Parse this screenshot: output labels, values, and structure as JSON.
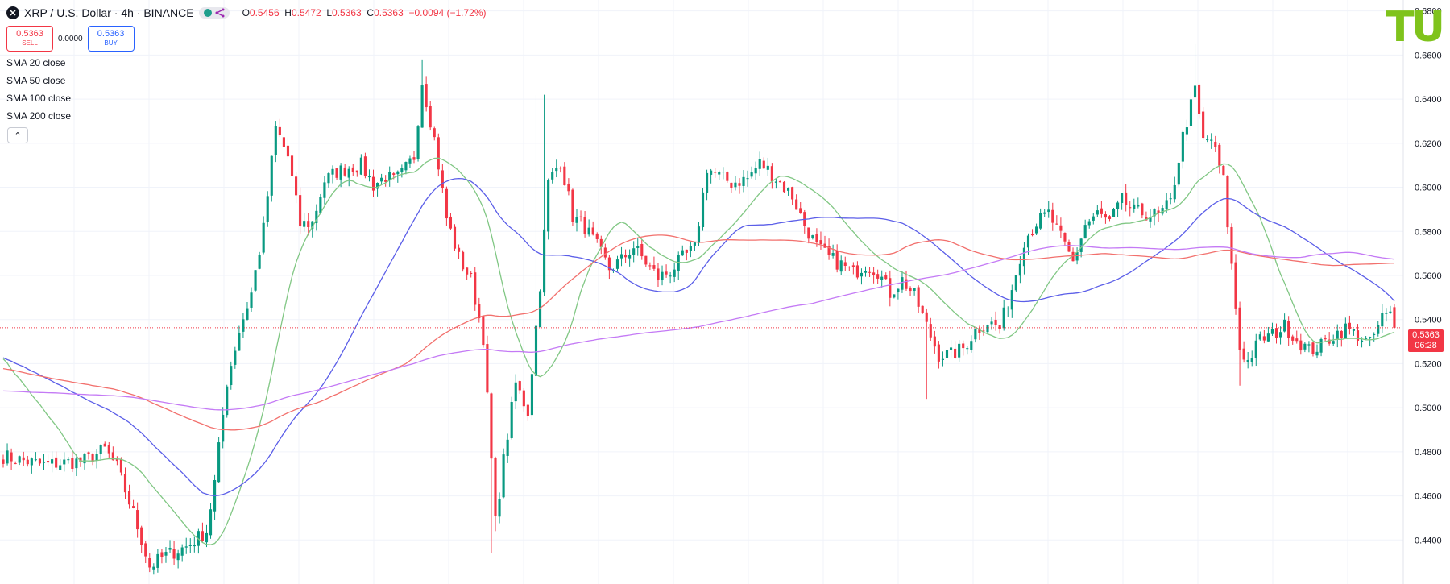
{
  "header": {
    "symbol_icon": "x-icon",
    "title": "XRP / U.S. Dollar · 4h · BINANCE",
    "ohlc": [
      {
        "k": "O",
        "v": "0.5456"
      },
      {
        "k": "H",
        "v": "0.5472"
      },
      {
        "k": "L",
        "v": "0.5363"
      },
      {
        "k": "C",
        "v": "0.5363"
      }
    ],
    "change": "−0.0094 (−1.72%)"
  },
  "trade": {
    "sell_price": "0.5363",
    "sell_label": "SELL",
    "spread": "0.0000",
    "buy_price": "0.5363",
    "buy_label": "BUY"
  },
  "indicators": [
    "SMA 20 close",
    "SMA 50 close",
    "SMA 100 close",
    "SMA 200 close"
  ],
  "collapse_icon": "chevron-up-icon",
  "logo": "TU",
  "last_price": {
    "price": "0.5363",
    "countdown": "06:28"
  },
  "colors": {
    "up": "#089981",
    "down": "#f23645",
    "sma20": "#81c784",
    "sma50": "#5b5ee8",
    "sma100": "#f2706d",
    "sma200": "#c47af5",
    "logo": "#7fc31c",
    "grid": "#f0f3fa"
  },
  "chart_data": {
    "type": "candlestick",
    "symbol": "XRP / U.S. Dollar",
    "interval": "4h",
    "exchange": "BINANCE",
    "ylim": [
      0.42,
      0.685
    ],
    "y_ticks": [
      "0.6800",
      "0.6600",
      "0.6400",
      "0.6200",
      "0.6000",
      "0.5800",
      "0.5600",
      "0.5400",
      "0.5200",
      "0.5000",
      "0.4800",
      "0.4600",
      "0.4400"
    ],
    "close_anchors": [
      [
        0,
        0.478
      ],
      [
        10,
        0.474
      ],
      [
        20,
        0.476
      ],
      [
        25,
        0.481
      ],
      [
        28,
        0.473
      ],
      [
        32,
        0.452
      ],
      [
        36,
        0.428
      ],
      [
        40,
        0.433
      ],
      [
        45,
        0.437
      ],
      [
        50,
        0.444
      ],
      [
        52,
        0.466
      ],
      [
        55,
        0.512
      ],
      [
        58,
        0.535
      ],
      [
        61,
        0.552
      ],
      [
        64,
        0.581
      ],
      [
        67,
        0.627
      ],
      [
        70,
        0.614
      ],
      [
        73,
        0.583
      ],
      [
        76,
        0.584
      ],
      [
        79,
        0.603
      ],
      [
        82,
        0.607
      ],
      [
        85,
        0.609
      ],
      [
        88,
        0.61
      ],
      [
        91,
        0.601
      ],
      [
        94,
        0.605
      ],
      [
        96,
        0.603
      ],
      [
        98,
        0.606
      ],
      [
        101,
        0.614
      ],
      [
        103,
        0.648
      ],
      [
        106,
        0.622
      ],
      [
        109,
        0.586
      ],
      [
        112,
        0.568
      ],
      [
        115,
        0.558
      ],
      [
        118,
        0.532
      ],
      [
        121,
        0.448
      ],
      [
        123,
        0.476
      ],
      [
        126,
        0.511
      ],
      [
        129,
        0.498
      ],
      [
        132,
        0.556
      ],
      [
        134,
        0.602
      ],
      [
        137,
        0.612
      ],
      [
        140,
        0.587
      ],
      [
        143,
        0.582
      ],
      [
        146,
        0.573
      ],
      [
        149,
        0.563
      ],
      [
        152,
        0.567
      ],
      [
        155,
        0.573
      ],
      [
        158,
        0.566
      ],
      [
        161,
        0.559
      ],
      [
        164,
        0.562
      ],
      [
        167,
        0.568
      ],
      [
        170,
        0.572
      ],
      [
        173,
        0.609
      ],
      [
        176,
        0.605
      ],
      [
        179,
        0.602
      ],
      [
        183,
        0.604
      ],
      [
        186,
        0.611
      ],
      [
        188,
        0.608
      ],
      [
        191,
        0.602
      ],
      [
        194,
        0.596
      ],
      [
        197,
        0.583
      ],
      [
        200,
        0.573
      ],
      [
        203,
        0.568
      ],
      [
        206,
        0.565
      ],
      [
        209,
        0.561
      ],
      [
        212,
        0.565
      ],
      [
        215,
        0.562
      ],
      [
        218,
        0.552
      ],
      [
        221,
        0.558
      ],
      [
        224,
        0.551
      ],
      [
        227,
        0.537
      ],
      [
        230,
        0.524
      ],
      [
        233,
        0.524
      ],
      [
        236,
        0.527
      ],
      [
        239,
        0.535
      ],
      [
        242,
        0.539
      ],
      [
        245,
        0.536
      ],
      [
        248,
        0.554
      ],
      [
        251,
        0.576
      ],
      [
        254,
        0.584
      ],
      [
        257,
        0.588
      ],
      [
        260,
        0.577
      ],
      [
        263,
        0.566
      ],
      [
        266,
        0.583
      ],
      [
        269,
        0.588
      ],
      [
        272,
        0.584
      ],
      [
        275,
        0.594
      ],
      [
        278,
        0.589
      ],
      [
        281,
        0.588
      ],
      [
        284,
        0.587
      ],
      [
        287,
        0.593
      ],
      [
        290,
        0.623
      ],
      [
        293,
        0.644
      ],
      [
        295,
        0.621
      ],
      [
        297,
        0.622
      ],
      [
        300,
        0.603
      ],
      [
        302,
        0.564
      ],
      [
        304,
        0.527
      ],
      [
        306,
        0.521
      ],
      [
        309,
        0.531
      ],
      [
        312,
        0.533
      ],
      [
        315,
        0.537
      ],
      [
        318,
        0.531
      ],
      [
        321,
        0.526
      ],
      [
        324,
        0.528
      ],
      [
        327,
        0.533
      ],
      [
        330,
        0.536
      ],
      [
        333,
        0.533
      ],
      [
        336,
        0.529
      ],
      [
        339,
        0.541
      ],
      [
        341,
        0.542
      ],
      [
        342,
        0.5363
      ]
    ],
    "notable_extremes": [
      {
        "bar": 120,
        "low": 0.434
      },
      {
        "bar": 121,
        "low": 0.444
      },
      {
        "bar": 131,
        "high": 0.642
      },
      {
        "bar": 133,
        "high": 0.642
      },
      {
        "bar": 103,
        "high": 0.658
      },
      {
        "bar": 293,
        "high": 0.665
      },
      {
        "bar": 304,
        "low": 0.51
      },
      {
        "bar": 227,
        "low": 0.504
      }
    ],
    "last_close": 0.5363,
    "last_bar": 342,
    "sma": [
      {
        "name": "SMA 20 close",
        "period": 20
      },
      {
        "name": "SMA 50 close",
        "period": 50
      },
      {
        "name": "SMA 100 close",
        "period": 100
      },
      {
        "name": "SMA 200 close",
        "period": 200
      }
    ],
    "sma200_start_value": 0.508,
    "grid": true,
    "price_line": "dotted"
  }
}
